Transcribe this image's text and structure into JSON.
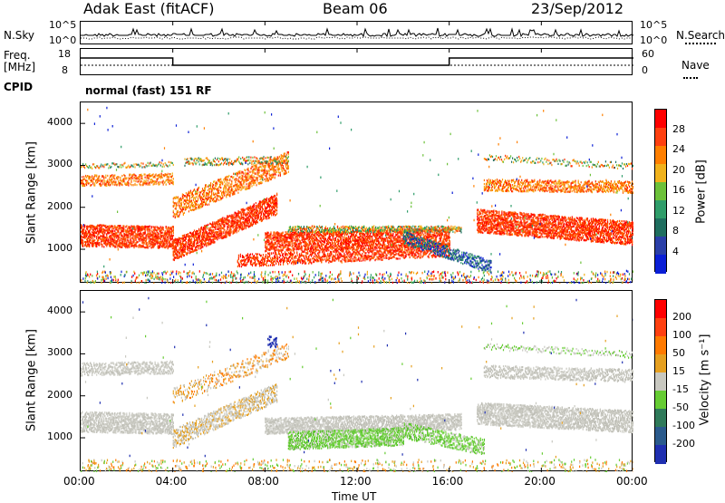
{
  "header": {
    "station": "Adak East (fitACF)",
    "beam": "Beam 06",
    "date": "23/Sep/2012"
  },
  "top_panels": {
    "nsky_label": "N.Sky",
    "nsky_ticks": [
      "10^5",
      "10^0"
    ],
    "nsearch_label": "N.Search",
    "nsearch_ticks": [
      "10^5",
      "10^0"
    ],
    "freq_label": "Freq.",
    "freq_unit": "[MHz]",
    "freq_ticks": [
      "18",
      "8"
    ],
    "nave_label": "Nave",
    "nave_ticks": [
      "60",
      "0"
    ],
    "cpid_label": "CPID",
    "cpid_value": "normal (fast) 151 RF"
  },
  "chart_data": [
    {
      "type": "heatmap",
      "title": "",
      "ylabel": "Slant Range [km]",
      "xlabel": "",
      "colorbar_label": "Power [dB]",
      "colorbar_ticks": [
        "28",
        "24",
        "20",
        "16",
        "12",
        "8",
        "4"
      ],
      "colorbar_range": [
        0,
        32
      ],
      "colorbar_colors": [
        "#0a1fd6",
        "#2a3fa8",
        "#1f6e5f",
        "#2f9d6a",
        "#6cc13a",
        "#f0b21c",
        "#ff7f00",
        "#ff4010",
        "#ff0000"
      ],
      "y_ticks": [
        "4000",
        "3000",
        "2000",
        "1000"
      ],
      "ylim": [
        180,
        4500
      ],
      "x_ticks": [
        "00:00",
        "04:00",
        "08:00",
        "12:00",
        "16:00",
        "20:00",
        "00:00"
      ],
      "xlim_hours": [
        0,
        24
      ]
    },
    {
      "type": "heatmap",
      "title": "",
      "ylabel": "Slant Range [km]",
      "xlabel": "Time UT",
      "colorbar_label": "Velocity [m s⁻¹]",
      "colorbar_ticks": [
        "200",
        "100",
        "50",
        "15",
        "-15",
        "-50",
        "-100",
        "-200"
      ],
      "colorbar_colors": [
        "#1f2fb0",
        "#2a5a8c",
        "#2f7a5a",
        "#66cc33",
        "#c8c8c0",
        "#e6a020",
        "#ff7a00",
        "#ff4010",
        "#ff0000"
      ],
      "y_ticks": [
        "4000",
        "3000",
        "2000",
        "1000"
      ],
      "ylim": [
        180,
        4500
      ],
      "x_ticks": [
        "00:00",
        "04:00",
        "08:00",
        "12:00",
        "16:00",
        "20:00",
        "00:00"
      ],
      "xlim_hours": [
        0,
        24
      ]
    }
  ]
}
